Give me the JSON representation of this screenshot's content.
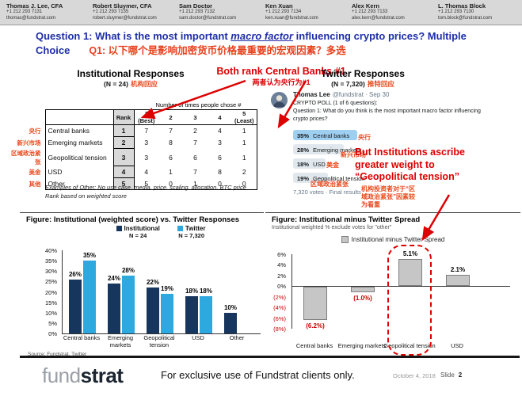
{
  "contacts": [
    {
      "name": "Thomas J. Lee, CFA",
      "phone": "+1 212 293 7131",
      "email": "thomas@fundstrat.com"
    },
    {
      "name": "Robert Sluymer, CFA",
      "phone": "+1 212 293 7135",
      "email": "robert.sluymer@fundstrat.com"
    },
    {
      "name": "Sam Doctor",
      "phone": "+1 212 293 7132",
      "email": "sam.doctor@fundstrat.com"
    },
    {
      "name": "Ken Xuan",
      "phone": "+1 212 293 7134",
      "email": "ken.xuan@fundstrat.com"
    },
    {
      "name": "Alex Kern",
      "phone": "+1 212 293 7133",
      "email": "alex.kern@fundstrat.com"
    },
    {
      "name": "L. Thomas Block",
      "phone": "+1 212 293 7130",
      "email": "tom.block@fundstrat.com"
    }
  ],
  "question": {
    "line1_pre": "Question 1: What is the most important ",
    "line1_em": "macro factor",
    "line1_post": " influencing crypto prices? Multiple",
    "line2": "Choice",
    "cn": "Q1: 以下哪个是影响加密货币价格最重要的宏观因素？多选"
  },
  "institutional": {
    "title": "Institutional Responses",
    "n": "(N = 24)",
    "n_cn": "机构回应"
  },
  "twitter_section": {
    "title": "Twitter Responses",
    "n": "(N = 7,320)",
    "n_cn": "推特回应"
  },
  "annotations": {
    "both": "Both rank Central Banks #1",
    "both_cn": "两者认为央行为#1",
    "inst": "But Institutions ascribe\ngreater weight to\n“Geopolitical tension”",
    "inst_cn": "机构投资者对于“区\n域政治紧张”因素较\n为看重"
  },
  "table": {
    "span_header": "Number of times people chose #",
    "headers": [
      "Rank",
      "1 (Best)",
      "2",
      "3",
      "4",
      "5 (Least)"
    ],
    "rows": [
      {
        "cn": "央行",
        "label": "Central banks",
        "rank": "1",
        "counts": [
          "7",
          "7",
          "2",
          "4",
          "1"
        ]
      },
      {
        "cn": "新兴市场",
        "label": "Emerging markets",
        "rank": "2",
        "counts": [
          "3",
          "8",
          "7",
          "3",
          "1"
        ]
      },
      {
        "cn": "区域政治紧张",
        "label": "Geopolitical tension",
        "rank": "3",
        "counts": [
          "3",
          "6",
          "6",
          "6",
          "1"
        ]
      },
      {
        "cn": "美金",
        "label": "USD",
        "rank": "4",
        "counts": [
          "4",
          "1",
          "7",
          "8",
          "2"
        ]
      },
      {
        "cn": "其他",
        "label": "Other",
        "rank": "5",
        "counts": [
          "5",
          "0",
          "1",
          "0",
          "0"
        ]
      }
    ],
    "note1": "Examples of Other: No use case, media, price, scaling, allocation, BTC price",
    "note2": "Rank based on weighted score"
  },
  "tweet": {
    "author": "Thomas Lee",
    "meta": "@fundstrat · Sep 30",
    "body": "CRYPTO POLL (1 of 6 questions):\nQuestion 1: What do you think is the most important macro factor influencing\ncrypto prices?",
    "poll": [
      {
        "pct": 35,
        "pct_label": "35%",
        "label": "Central banks",
        "cn": "央行",
        "highlight": true
      },
      {
        "pct": 28,
        "pct_label": "28%",
        "label": "Emerging markets",
        "cn": "新兴市场",
        "highlight": false
      },
      {
        "pct": 18,
        "pct_label": "18%",
        "label": "USD",
        "cn": "美金",
        "highlight": false
      },
      {
        "pct": 19,
        "pct_label": "19%",
        "label": "Geopolitical tension",
        "cn": "区域政治紧张",
        "highlight": false
      }
    ],
    "votes": "7,320 votes · Final results"
  },
  "chart_data": [
    {
      "type": "bar",
      "title": "Figure: Institutional (weighted score) vs. Twitter Responses",
      "categories": [
        "Central banks",
        "Emerging markets",
        "Geopolitical tension",
        "USD",
        "Other"
      ],
      "series": [
        {
          "name": "Institutional",
          "n_label": "N = 24",
          "color": "#17365D",
          "values": [
            26,
            24,
            22,
            18,
            10
          ]
        },
        {
          "name": "Twitter",
          "n_label": "N = 7,320",
          "color": "#2EA9E0",
          "values": [
            35,
            28,
            19,
            18,
            null
          ]
        }
      ],
      "value_suffix": "%",
      "ylim": [
        0,
        40
      ],
      "ytick_step": 5,
      "source": "Source: Fundstrat, Twitter"
    },
    {
      "type": "bar",
      "title": "Figure: Institutional minus Twitter Spread",
      "subtitle": "Institutional weighted % exclude votes for \"other\"",
      "legend": "Institutional minus Twitter Spread",
      "categories": [
        "Central banks",
        "Emerging markets",
        "Geopolitical tension",
        "USD"
      ],
      "values": [
        -6.2,
        -1.0,
        5.1,
        2.1
      ],
      "labels": [
        "(6.2%)",
        "(1.0%)",
        "5.1%",
        "2.1%"
      ],
      "bar_color": "#C6C6C6",
      "bar_border": "#7F7F7F",
      "ylim": [
        -8,
        6
      ],
      "ytick_step": 2,
      "highlight_category": "Geopolitical tension"
    }
  ],
  "footer": {
    "logo_light": "fund",
    "logo_bold": "strat",
    "text": "For exclusive use of Fundstrat clients only.",
    "date": "October 4, 2018",
    "slide_label": "Slide",
    "slide_number": "2"
  },
  "colors": {
    "accent_red": "#DD0000",
    "orange": "#E8491D",
    "title_blue": "#1E2EA8",
    "poll_highlight": "#9FCFF0",
    "poll_gray": "#E1E8ED"
  }
}
